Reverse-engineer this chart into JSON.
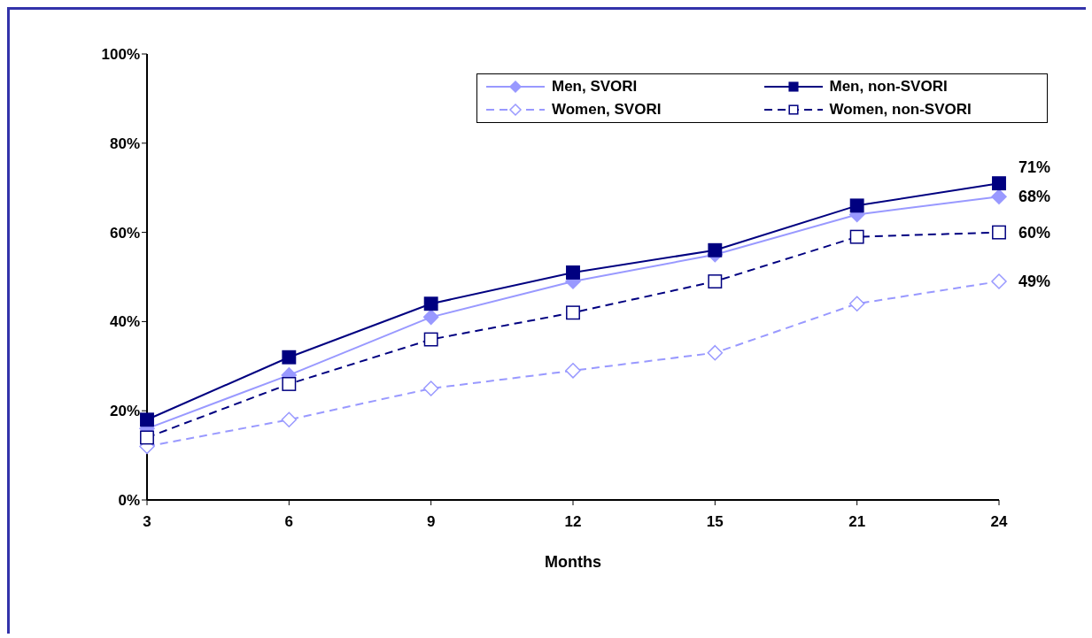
{
  "chart_data": {
    "type": "line",
    "xlabel": "Months",
    "categories": [
      "3",
      "6",
      "9",
      "12",
      "15",
      "21",
      "24"
    ],
    "ylim": [
      0,
      100
    ],
    "yticks": [
      {
        "value": 0,
        "label": "0%"
      },
      {
        "value": 20,
        "label": "20%"
      },
      {
        "value": 40,
        "label": "40%"
      },
      {
        "value": 60,
        "label": "60%"
      },
      {
        "value": 80,
        "label": "80%"
      },
      {
        "value": 100,
        "label": "100%"
      }
    ],
    "grid": false,
    "legend": "top right",
    "series": [
      {
        "name": "Men, SVORI",
        "color": "#9999ff",
        "marker": "diamond",
        "line_style": "solid",
        "values": [
          16,
          28,
          41,
          49,
          55,
          64,
          68
        ],
        "value_labels": [
          null,
          null,
          null,
          null,
          null,
          null,
          "68%"
        ]
      },
      {
        "name": "Men, non-SVORI",
        "color": "#000080",
        "marker": "square",
        "line_style": "solid",
        "values": [
          18,
          32,
          44,
          51,
          56,
          66,
          71
        ],
        "value_labels": [
          null,
          null,
          null,
          null,
          null,
          null,
          "71%"
        ]
      },
      {
        "name": "Women, SVORI",
        "color": "#9999ff",
        "marker": "diamond",
        "line_style": "dashed",
        "values": [
          12,
          18,
          25,
          29,
          33,
          44,
          49
        ],
        "value_labels": [
          null,
          null,
          null,
          null,
          null,
          null,
          "49%"
        ]
      },
      {
        "name": "Women, non-SVORI",
        "color": "#000080",
        "marker": "square",
        "line_style": "dashed",
        "values": [
          14,
          26,
          36,
          42,
          49,
          59,
          60
        ],
        "value_labels": [
          null,
          null,
          null,
          null,
          null,
          null,
          "60%"
        ]
      }
    ]
  }
}
